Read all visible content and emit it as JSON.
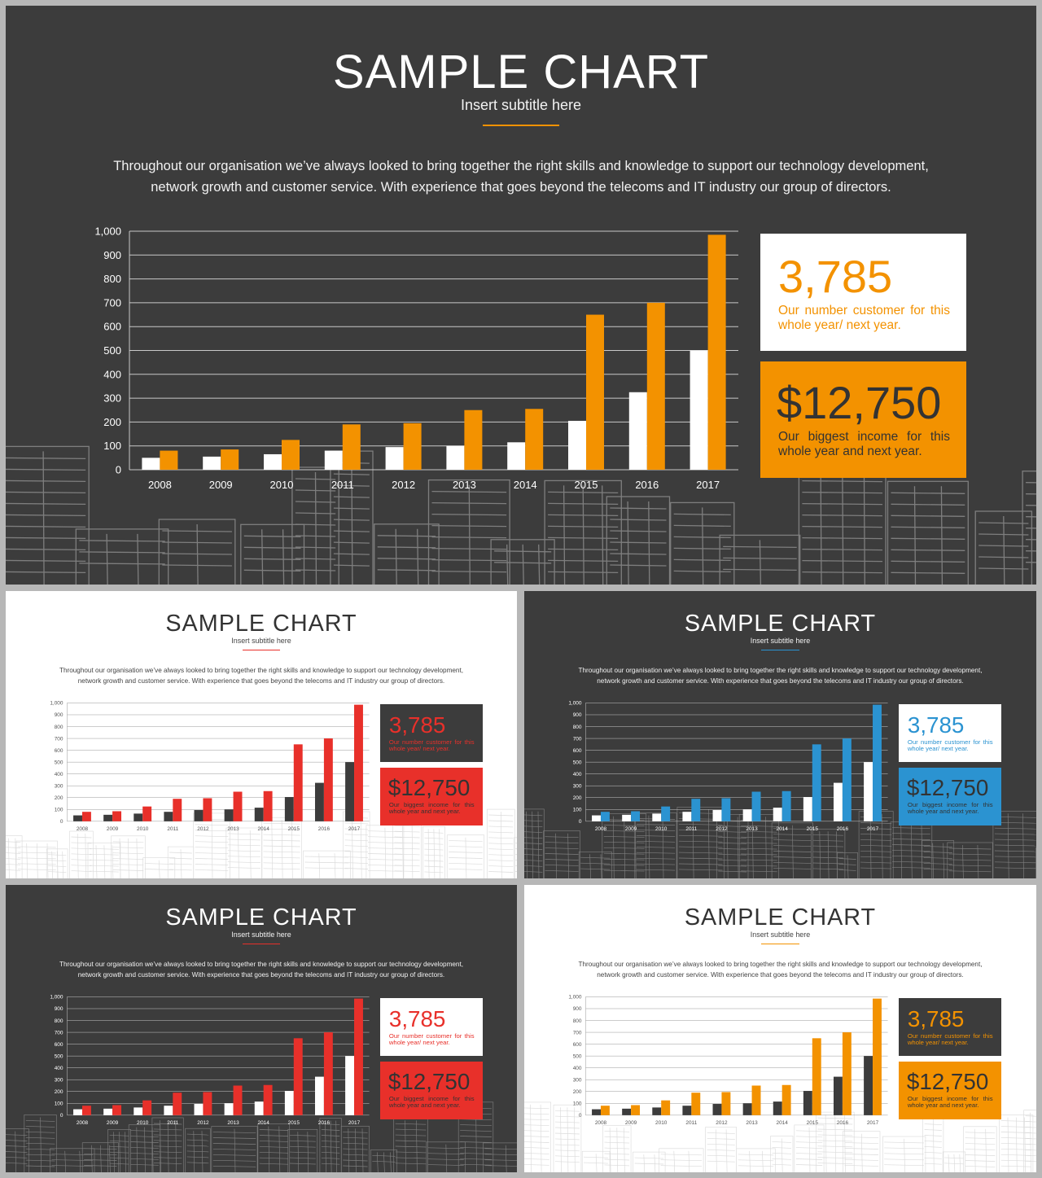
{
  "slides": [
    {
      "id": "main",
      "title": "SAMPLE CHART",
      "subtitle": "Insert subtitle here",
      "body": "Throughout our organisation we’ve always looked to bring together the right skills and knowledge to support our technology development, network growth and customer service. With experience that goes beyond the telecoms and IT industry our group of directors.",
      "theme": "dark",
      "colors": {
        "background": "#3c3c3c",
        "accent": "#f39200",
        "secondary_bar": "#ffffff",
        "text": "#ffffff"
      },
      "stat1": {
        "value": "3,785",
        "text": "Our number customer for this whole year/ next year."
      },
      "stat2": {
        "value": "$12,750",
        "text": "Our biggest income for this whole year and next year."
      }
    },
    {
      "id": "variant-white-red",
      "title": "SAMPLE CHART",
      "subtitle": "Insert subtitle here",
      "body": "Throughout our organisation we’ve always looked to bring together the right skills and knowledge to support our technology development, network growth and customer service. With experience that goes beyond the telecoms and IT industry our group of directors.",
      "theme": "light",
      "colors": {
        "background": "#ffffff",
        "accent": "#e8302a",
        "secondary_bar": "#3c3c3c",
        "text": "#333333"
      },
      "stat1": {
        "value": "3,785",
        "text": "Our number customer for this whole year/ next year."
      },
      "stat2": {
        "value": "$12,750",
        "text": "Our biggest income for this whole year and next year."
      }
    },
    {
      "id": "variant-dark-blue",
      "title": "SAMPLE CHART",
      "subtitle": "Insert subtitle here",
      "body": "Throughout our organisation we’ve always looked to bring together the right skills and knowledge to support our technology development, network growth and customer service. With experience that goes beyond the telecoms and IT industry our group of directors.",
      "theme": "dark",
      "colors": {
        "background": "#3c3c3c",
        "accent": "#2b93d1",
        "secondary_bar": "#ffffff",
        "text": "#ffffff"
      },
      "stat1": {
        "value": "3,785",
        "text": "Our number customer for this whole year/ next year."
      },
      "stat2": {
        "value": "$12,750",
        "text": "Our biggest income for this whole year and next year."
      }
    },
    {
      "id": "variant-dark-red",
      "title": "SAMPLE CHART",
      "subtitle": "Insert subtitle here",
      "body": "Throughout our organisation we’ve always looked to bring together the right skills and knowledge to support our technology development, network growth and customer service. With experience that goes beyond the telecoms and IT industry our group of directors.",
      "theme": "dark",
      "colors": {
        "background": "#3c3c3c",
        "accent": "#e8302a",
        "secondary_bar": "#ffffff",
        "text": "#ffffff"
      },
      "stat1": {
        "value": "3,785",
        "text": "Our number customer for this whole year/ next year."
      },
      "stat2": {
        "value": "$12,750",
        "text": "Our biggest income for this whole year and next year."
      }
    },
    {
      "id": "variant-white-orange",
      "title": "SAMPLE CHART",
      "subtitle": "Insert subtitle here",
      "body": "Throughout our organisation we’ve always looked to bring together the right skills and knowledge to support our technology development, network growth and customer service. With experience that goes beyond the telecoms and IT industry our group of directors.",
      "theme": "light",
      "colors": {
        "background": "#ffffff",
        "accent": "#f39200",
        "secondary_bar": "#3c3c3c",
        "text": "#333333"
      },
      "stat1": {
        "value": "3,785",
        "text": "Our number customer for this whole year/ next year."
      },
      "stat2": {
        "value": "$12,750",
        "text": "Our biggest income for this whole year and next year."
      }
    }
  ],
  "chart_data": {
    "type": "bar",
    "categories": [
      "2008",
      "2009",
      "2010",
      "2011",
      "2012",
      "2013",
      "2014",
      "2015",
      "2016",
      "2017"
    ],
    "series": [
      {
        "values": [
          50,
          55,
          65,
          80,
          95,
          100,
          115,
          205,
          325,
          500
        ]
      },
      {
        "values": [
          80,
          85,
          125,
          190,
          195,
          250,
          255,
          650,
          700,
          985
        ]
      }
    ],
    "ylim": [
      0,
      1000
    ],
    "yticks": [
      0,
      100,
      200,
      300,
      400,
      500,
      600,
      700,
      800,
      900,
      1000
    ],
    "ytick_labels": [
      "0",
      "100",
      "200",
      "300",
      "400",
      "500",
      "600",
      "700",
      "800",
      "900",
      "1,000"
    ],
    "grid": true,
    "title": "",
    "xlabel": "",
    "ylabel": ""
  }
}
